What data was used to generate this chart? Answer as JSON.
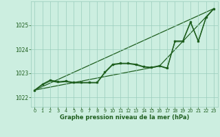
{
  "background_color": "#cceee0",
  "grid_color": "#99ccbb",
  "line_color": "#1e5e1e",
  "text_color": "#1e5e1e",
  "xlabel": "Graphe pression niveau de la mer (hPa)",
  "xlim": [
    -0.5,
    23.5
  ],
  "ylim": [
    1021.6,
    1026.0
  ],
  "yticks": [
    1022,
    1023,
    1024,
    1025
  ],
  "xticks": [
    0,
    1,
    2,
    3,
    4,
    5,
    6,
    7,
    8,
    9,
    10,
    11,
    12,
    13,
    14,
    15,
    16,
    17,
    18,
    19,
    20,
    21,
    22,
    23
  ],
  "straight_line": {
    "x": [
      0,
      23
    ],
    "y": [
      1022.3,
      1025.7
    ]
  },
  "bent_line": {
    "x": [
      0,
      16,
      23
    ],
    "y": [
      1022.3,
      1023.3,
      1025.7
    ]
  },
  "series_main": {
    "x": [
      0,
      1,
      2,
      3,
      4,
      5,
      6,
      7,
      8,
      9,
      10,
      11,
      12,
      13,
      14,
      15,
      16,
      17,
      18,
      19,
      20,
      21,
      22,
      23
    ],
    "y": [
      1022.3,
      1022.55,
      1022.72,
      1022.65,
      1022.68,
      1022.62,
      1022.62,
      1022.62,
      1022.62,
      1023.05,
      1023.38,
      1023.42,
      1023.42,
      1023.38,
      1023.28,
      1023.25,
      1023.32,
      1023.22,
      1024.35,
      1024.35,
      1025.15,
      1024.35,
      1025.35,
      1025.7
    ]
  },
  "series_smooth": {
    "x": [
      0,
      1,
      2,
      3,
      4,
      5,
      6,
      7,
      8,
      9,
      10,
      11,
      12,
      13,
      14,
      15,
      16,
      17,
      18,
      19,
      20,
      21,
      22,
      23
    ],
    "y": [
      1022.3,
      1022.52,
      1022.68,
      1022.62,
      1022.65,
      1022.6,
      1022.6,
      1022.6,
      1022.6,
      1023.02,
      1023.35,
      1023.4,
      1023.4,
      1023.35,
      1023.26,
      1023.23,
      1023.3,
      1023.2,
      1024.32,
      1024.32,
      1025.12,
      1024.32,
      1025.32,
      1025.7
    ]
  }
}
